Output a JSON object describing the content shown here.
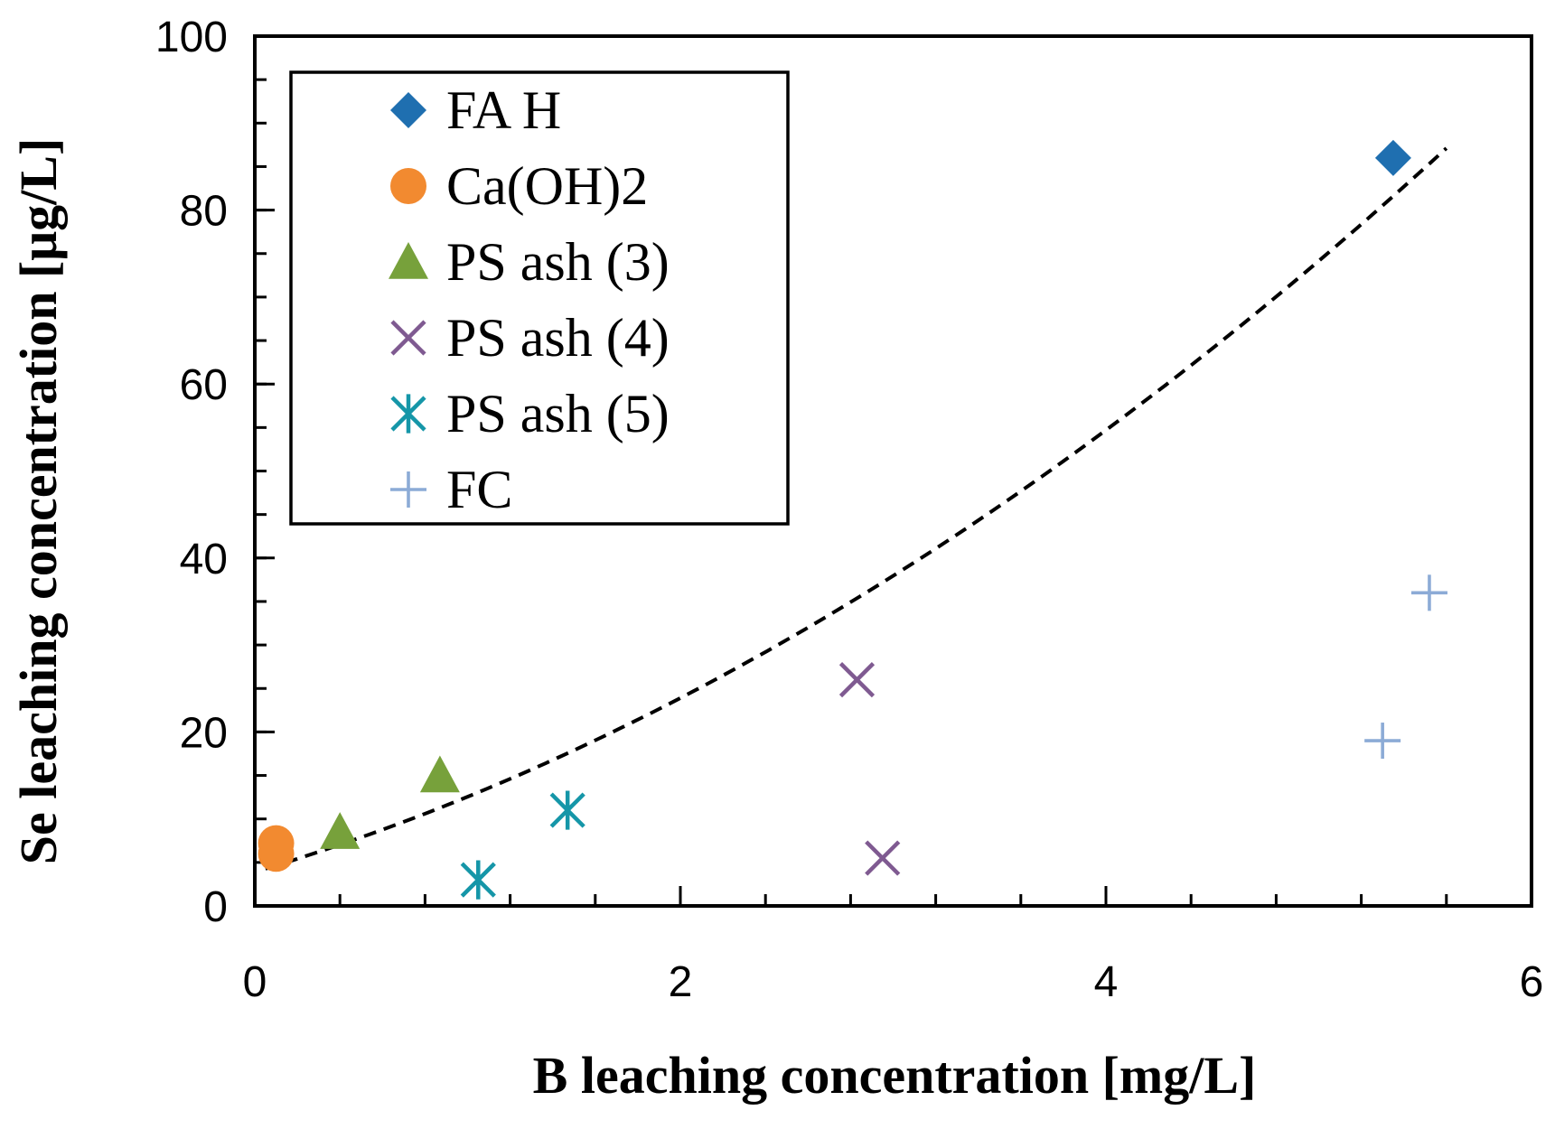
{
  "chart_data": {
    "type": "scatter",
    "title": "",
    "xlabel": "B leaching concentration [mg/L]",
    "ylabel": "Se leaching concentration [μg/L]",
    "xlim": [
      0,
      6
    ],
    "ylim": [
      0,
      100
    ],
    "x_ticks": [
      0,
      2,
      4,
      6
    ],
    "y_ticks": [
      0,
      20,
      40,
      60,
      80,
      100
    ],
    "x_minor_step": 0.4,
    "y_minor_step": 5,
    "grid": false,
    "legend_position": "top-left",
    "series": [
      {
        "name": "FA H",
        "marker": "diamond",
        "color": "#1f6fb0",
        "points": [
          [
            5.35,
            86
          ]
        ]
      },
      {
        "name": "Ca(OH)2",
        "marker": "circle",
        "color": "#f28a30",
        "points": [
          [
            0.1,
            7.2
          ],
          [
            0.1,
            6.0
          ]
        ]
      },
      {
        "name": "PS ash (3)",
        "marker": "triangle",
        "color": "#77a13b",
        "points": [
          [
            0.4,
            8.5
          ],
          [
            0.87,
            15.0
          ]
        ]
      },
      {
        "name": "PS ash (4)",
        "marker": "x",
        "color": "#7f5a91",
        "points": [
          [
            2.83,
            26.0
          ],
          [
            2.95,
            5.5
          ]
        ]
      },
      {
        "name": "PS ash (5)",
        "marker": "asterisk",
        "color": "#1596a8",
        "points": [
          [
            1.05,
            3.0
          ],
          [
            1.47,
            11.0
          ]
        ]
      },
      {
        "name": "FC",
        "marker": "plus",
        "color": "#8cabd6",
        "points": [
          [
            5.3,
            19.0
          ],
          [
            5.52,
            36.0
          ]
        ]
      }
    ],
    "trendline": {
      "style": "dashed",
      "color": "#000000",
      "type": "polynomial",
      "coefficients": [
        3.9,
        7.3,
        1.35
      ],
      "x_range": [
        0.05,
        5.6
      ]
    }
  }
}
